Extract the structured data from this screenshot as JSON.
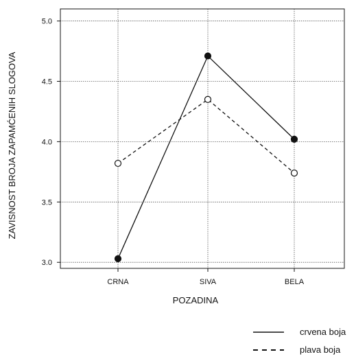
{
  "chart_data": {
    "type": "line",
    "title": "",
    "xlabel": "POZADINA",
    "ylabel": "ZAVISNOST BROJA ZAPAMĆENIH SLOGOVA",
    "categories": [
      "CRNA",
      "SIVA",
      "BELA"
    ],
    "ylim": [
      2.95,
      5.1
    ],
    "yticks": [
      "3.0",
      "3.5",
      "4.0",
      "4.5",
      "5.0"
    ],
    "grid": true,
    "legend_position": "bottom-right",
    "series": [
      {
        "name": "crvena boja",
        "values": [
          3.03,
          4.71,
          4.02
        ],
        "line_style": "solid",
        "marker": "filled-circle",
        "color": "#111111"
      },
      {
        "name": "plava boja",
        "values": [
          3.82,
          4.35,
          3.74
        ],
        "line_style": "dashed",
        "marker": "open-circle",
        "color": "#111111"
      }
    ]
  }
}
